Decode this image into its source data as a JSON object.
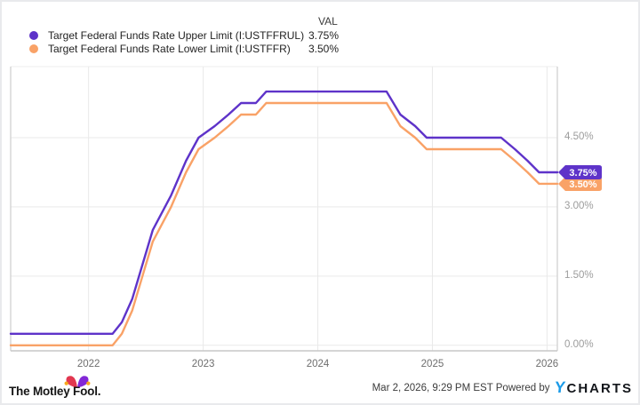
{
  "legend": {
    "val_header": "VAL",
    "items": [
      {
        "label": "Target Federal Funds Rate Upper Limit (I:USTFFRUL)",
        "value": "3.75%",
        "color": "#5e33c9"
      },
      {
        "label": "Target Federal Funds Rate Lower Limit (I:USTFFR)",
        "value": "3.50%",
        "color": "#f9a267"
      }
    ]
  },
  "chart_data": {
    "type": "line",
    "title": "",
    "xlabel": "",
    "ylabel": "",
    "x_unit": "decimal_year",
    "x_domain": [
      2021.32,
      2026.09
    ],
    "y_domain": [
      -0.12,
      6.04
    ],
    "grid": true,
    "legend_position": "top",
    "x_ticks": [
      {
        "v": 2022,
        "label": "2022"
      },
      {
        "v": 2023,
        "label": "2023"
      },
      {
        "v": 2024,
        "label": "2024"
      },
      {
        "v": 2025,
        "label": "2025"
      },
      {
        "v": 2026,
        "label": "2026"
      }
    ],
    "y_ticks": [
      {
        "v": 0.0,
        "label": "0.00%"
      },
      {
        "v": 1.5,
        "label": "1.50%"
      },
      {
        "v": 3.0,
        "label": "3.00%"
      },
      {
        "v": 4.5,
        "label": "4.50%"
      }
    ],
    "series": [
      {
        "name": "Target Federal Funds Rate Upper Limit",
        "ticker": "I:USTFFRUL",
        "color": "#5e33c9",
        "end_label": "3.75%",
        "points": [
          [
            2021.32,
            0.25
          ],
          [
            2022.21,
            0.25
          ],
          [
            2022.29,
            0.5
          ],
          [
            2022.38,
            1.0
          ],
          [
            2022.47,
            1.75
          ],
          [
            2022.56,
            2.5
          ],
          [
            2022.72,
            3.25
          ],
          [
            2022.85,
            4.0
          ],
          [
            2022.96,
            4.5
          ],
          [
            2023.1,
            4.75
          ],
          [
            2023.22,
            5.0
          ],
          [
            2023.33,
            5.25
          ],
          [
            2023.46,
            5.25
          ],
          [
            2023.55,
            5.5
          ],
          [
            2024.6,
            5.5
          ],
          [
            2024.72,
            5.0
          ],
          [
            2024.85,
            4.75
          ],
          [
            2024.95,
            4.5
          ],
          [
            2025.6,
            4.5
          ],
          [
            2025.72,
            4.25
          ],
          [
            2025.83,
            4.0
          ],
          [
            2025.93,
            3.75
          ],
          [
            2026.09,
            3.75
          ]
        ]
      },
      {
        "name": "Target Federal Funds Rate Lower Limit",
        "ticker": "I:USTFFR",
        "color": "#f9a267",
        "end_label": "3.50%",
        "points": [
          [
            2021.32,
            0.0
          ],
          [
            2022.21,
            0.0
          ],
          [
            2022.29,
            0.25
          ],
          [
            2022.38,
            0.75
          ],
          [
            2022.47,
            1.5
          ],
          [
            2022.56,
            2.25
          ],
          [
            2022.72,
            3.0
          ],
          [
            2022.85,
            3.75
          ],
          [
            2022.96,
            4.25
          ],
          [
            2023.1,
            4.5
          ],
          [
            2023.22,
            4.75
          ],
          [
            2023.33,
            5.0
          ],
          [
            2023.46,
            5.0
          ],
          [
            2023.55,
            5.25
          ],
          [
            2024.6,
            5.25
          ],
          [
            2024.72,
            4.75
          ],
          [
            2024.85,
            4.5
          ],
          [
            2024.95,
            4.25
          ],
          [
            2025.6,
            4.25
          ],
          [
            2025.72,
            4.0
          ],
          [
            2025.83,
            3.75
          ],
          [
            2025.93,
            3.5
          ],
          [
            2026.09,
            3.5
          ]
        ]
      }
    ]
  },
  "footer": {
    "logo_text": "The Motley Fool.",
    "timestamp": "Mar 2, 2026, 9:29 PM EST",
    "powered_by": "Powered by",
    "brand_y": "Y",
    "brand_rest": "CHARTS"
  }
}
